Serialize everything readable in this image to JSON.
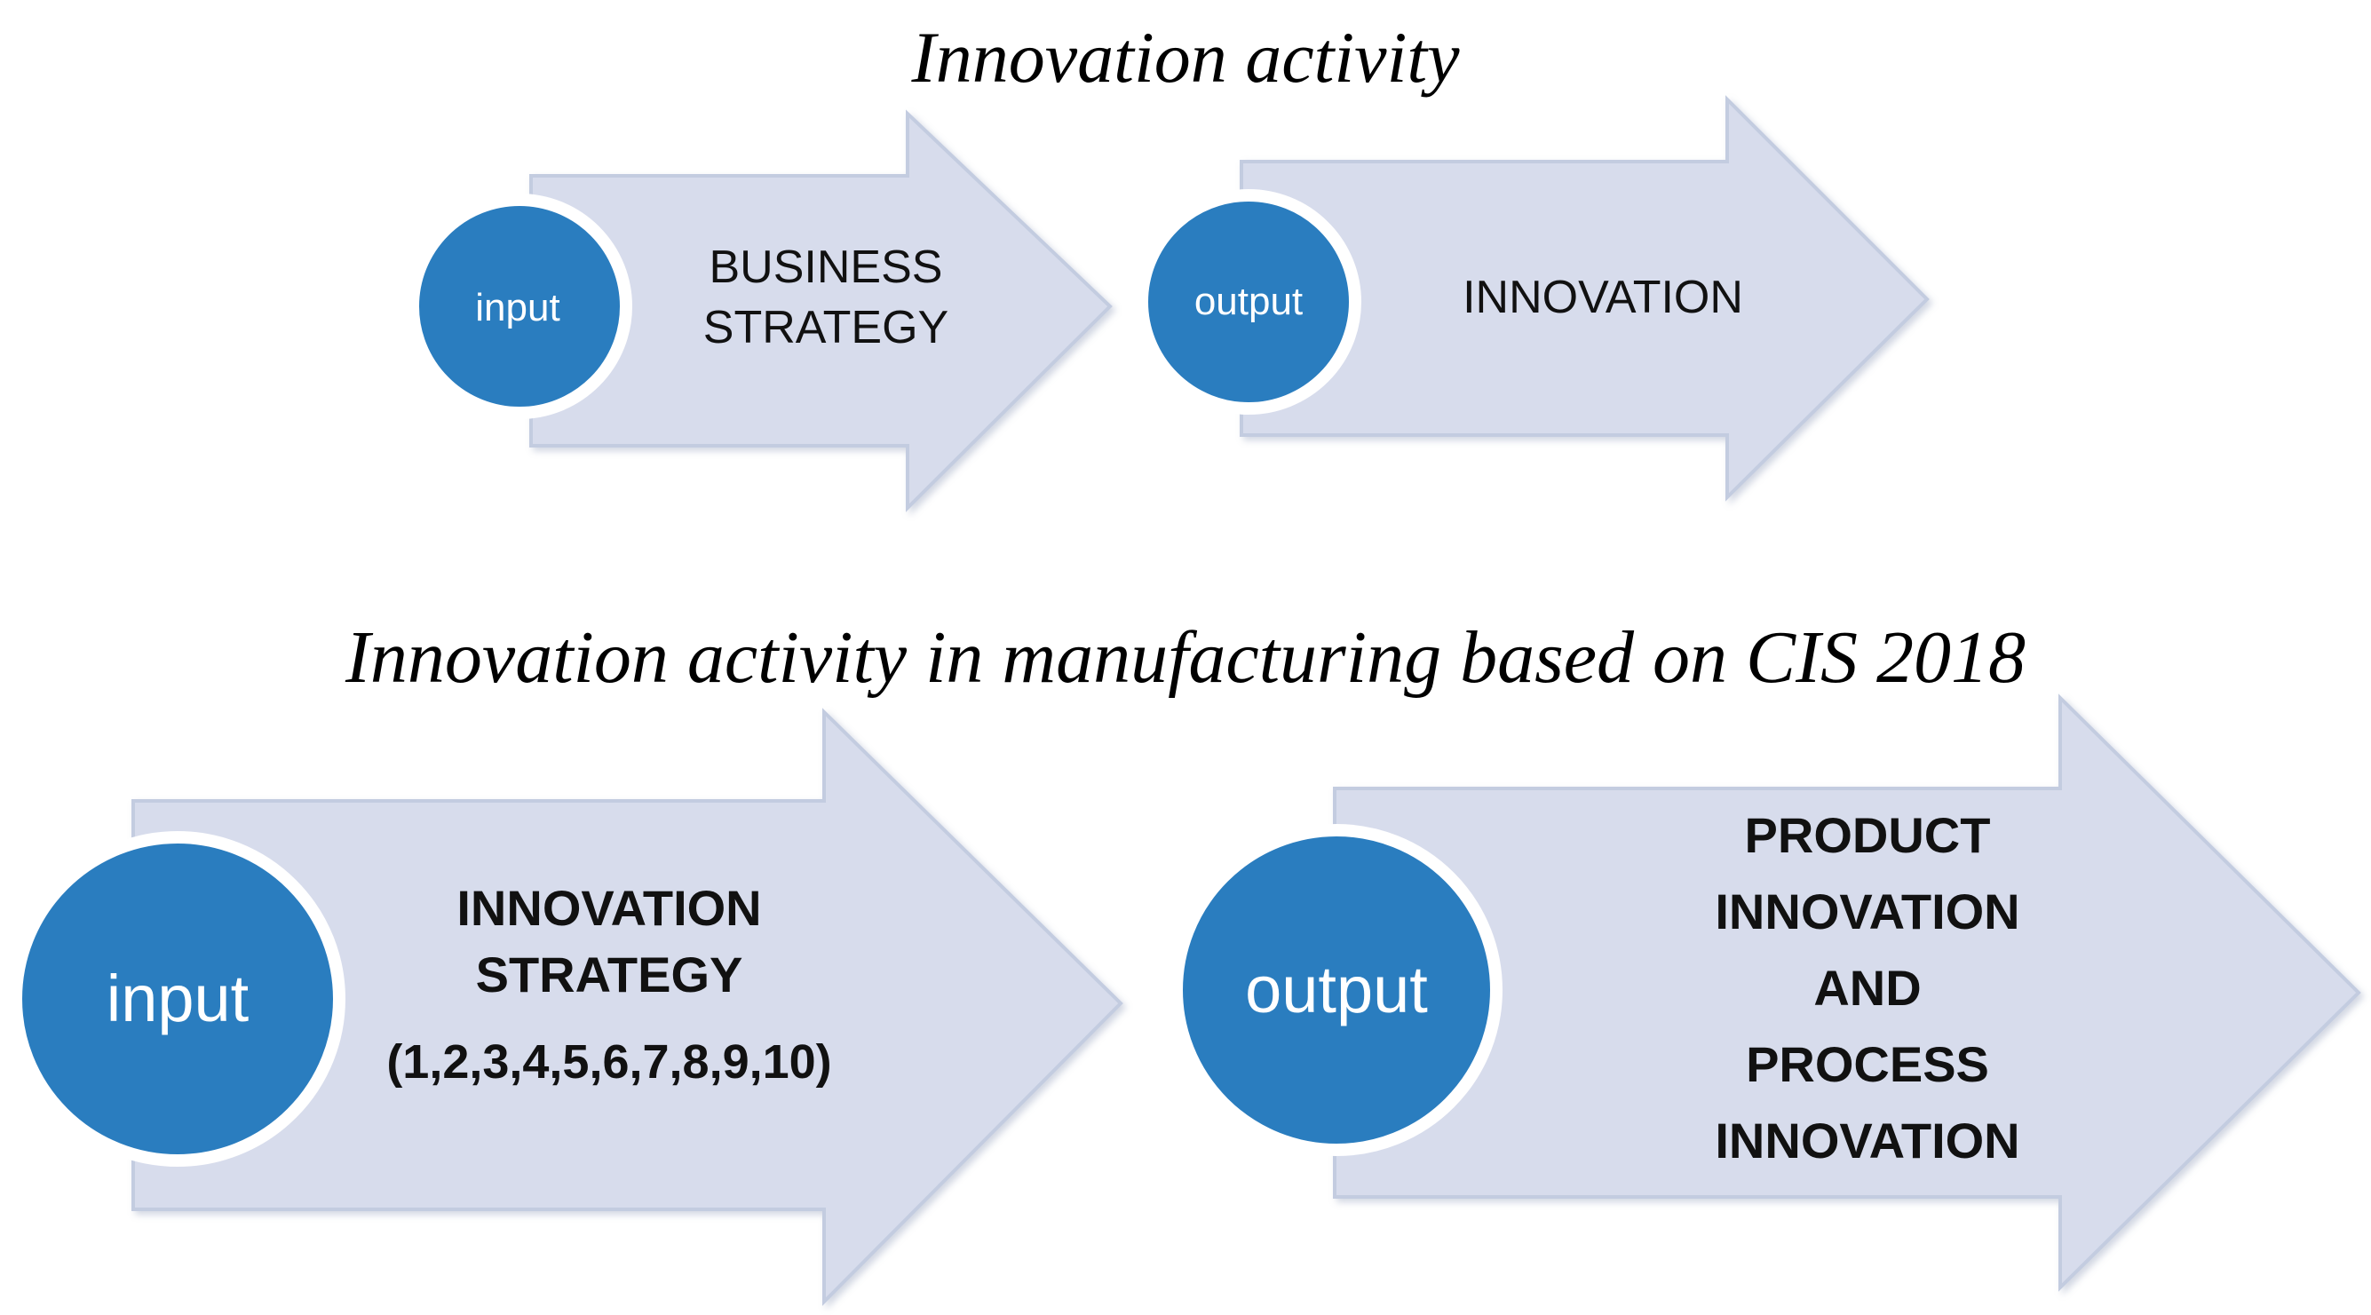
{
  "colors": {
    "arrow_fill": "#d7dcec",
    "circle_fill": "#2a7dbf",
    "circle_text": "#ffffff",
    "body_text": "#111111"
  },
  "section_top": {
    "title": "Innovation activity",
    "input_flow": {
      "circle_label": "input",
      "arrow_lines": [
        "BUSINESS",
        "STRATEGY"
      ]
    },
    "output_flow": {
      "circle_label": "output",
      "arrow_lines": [
        "INNOVATION"
      ]
    }
  },
  "section_bottom": {
    "title": "Innovation activity in manufacturing based on CIS 2018",
    "input_flow": {
      "circle_label": "input",
      "arrow_lines": [
        "INNOVATION",
        "STRATEGY",
        "(1,2,3,4,5,6,7,8,9,10)"
      ]
    },
    "output_flow": {
      "circle_label": "output",
      "arrow_lines": [
        "PRODUCT",
        "INNOVATION",
        "AND",
        "PROCESS",
        "INNOVATION"
      ]
    }
  }
}
